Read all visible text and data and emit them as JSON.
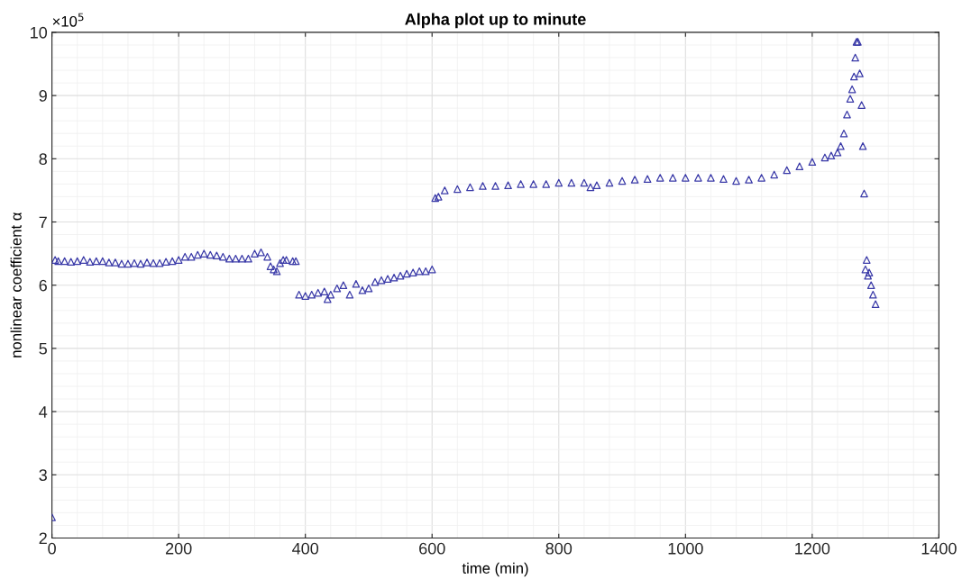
{
  "chart_data": {
    "type": "scatter",
    "title": "Alpha plot up to minute",
    "xlabel": "time (min)",
    "ylabel": "nonlinear coefficient α",
    "annotations": [
      "×10$^{5}$"
    ],
    "marker": "triangle",
    "grid": true,
    "xlim": [
      0,
      1400
    ],
    "xticks": [
      0,
      200,
      400,
      600,
      800,
      1000,
      1200,
      1400
    ],
    "ylim": [
      2,
      10
    ],
    "yticks": [
      2,
      3,
      4,
      5,
      6,
      7,
      8,
      9,
      10
    ],
    "series": [
      {
        "color": "#3a3aa8",
        "x": [
          0,
          5,
          10,
          20,
          30,
          40,
          50,
          60,
          70,
          80,
          90,
          100,
          110,
          120,
          130,
          140,
          150,
          160,
          170,
          180,
          190,
          200,
          210,
          220,
          230,
          240,
          250,
          260,
          270,
          280,
          290,
          300,
          310,
          320,
          330,
          340,
          345,
          350,
          355,
          360,
          365,
          370,
          380,
          385,
          390,
          400,
          410,
          420,
          430,
          435,
          440,
          450,
          460,
          470,
          480,
          490,
          500,
          510,
          520,
          530,
          540,
          550,
          560,
          570,
          580,
          590,
          600,
          605,
          610,
          620,
          640,
          660,
          680,
          700,
          720,
          740,
          760,
          780,
          800,
          820,
          840,
          850,
          860,
          880,
          900,
          920,
          940,
          960,
          980,
          1000,
          1020,
          1040,
          1060,
          1080,
          1100,
          1120,
          1140,
          1160,
          1180,
          1200,
          1220,
          1230,
          1240,
          1245,
          1250,
          1255,
          1260,
          1263,
          1266,
          1268,
          1270,
          1272,
          1275,
          1278,
          1280,
          1282,
          1284,
          1286,
          1288,
          1290,
          1293,
          1296,
          1300
        ],
        "values": [
          2.33,
          6.4,
          6.38,
          6.38,
          6.37,
          6.38,
          6.4,
          6.37,
          6.38,
          6.38,
          6.36,
          6.36,
          6.34,
          6.34,
          6.35,
          6.34,
          6.36,
          6.35,
          6.35,
          6.37,
          6.38,
          6.4,
          6.45,
          6.45,
          6.48,
          6.5,
          6.48,
          6.47,
          6.45,
          6.42,
          6.42,
          6.42,
          6.42,
          6.5,
          6.52,
          6.45,
          6.3,
          6.25,
          6.22,
          6.35,
          6.4,
          6.4,
          6.38,
          6.38,
          5.85,
          5.83,
          5.85,
          5.88,
          5.9,
          5.78,
          5.85,
          5.95,
          6.0,
          5.85,
          6.02,
          5.92,
          5.95,
          6.05,
          6.08,
          6.1,
          6.12,
          6.15,
          6.18,
          6.2,
          6.22,
          6.22,
          6.25,
          7.38,
          7.4,
          7.5,
          7.52,
          7.55,
          7.57,
          7.57,
          7.58,
          7.6,
          7.6,
          7.6,
          7.62,
          7.62,
          7.62,
          7.55,
          7.58,
          7.62,
          7.65,
          7.67,
          7.68,
          7.7,
          7.7,
          7.7,
          7.7,
          7.7,
          7.68,
          7.65,
          7.67,
          7.7,
          7.75,
          7.82,
          7.88,
          7.95,
          8.02,
          8.05,
          8.1,
          8.2,
          8.4,
          8.7,
          8.95,
          9.1,
          9.3,
          9.6,
          9.85,
          9.85,
          9.35,
          8.85,
          8.2,
          7.45,
          6.25,
          6.4,
          6.15,
          6.2,
          6.0,
          5.85,
          5.7
        ]
      }
    ]
  }
}
